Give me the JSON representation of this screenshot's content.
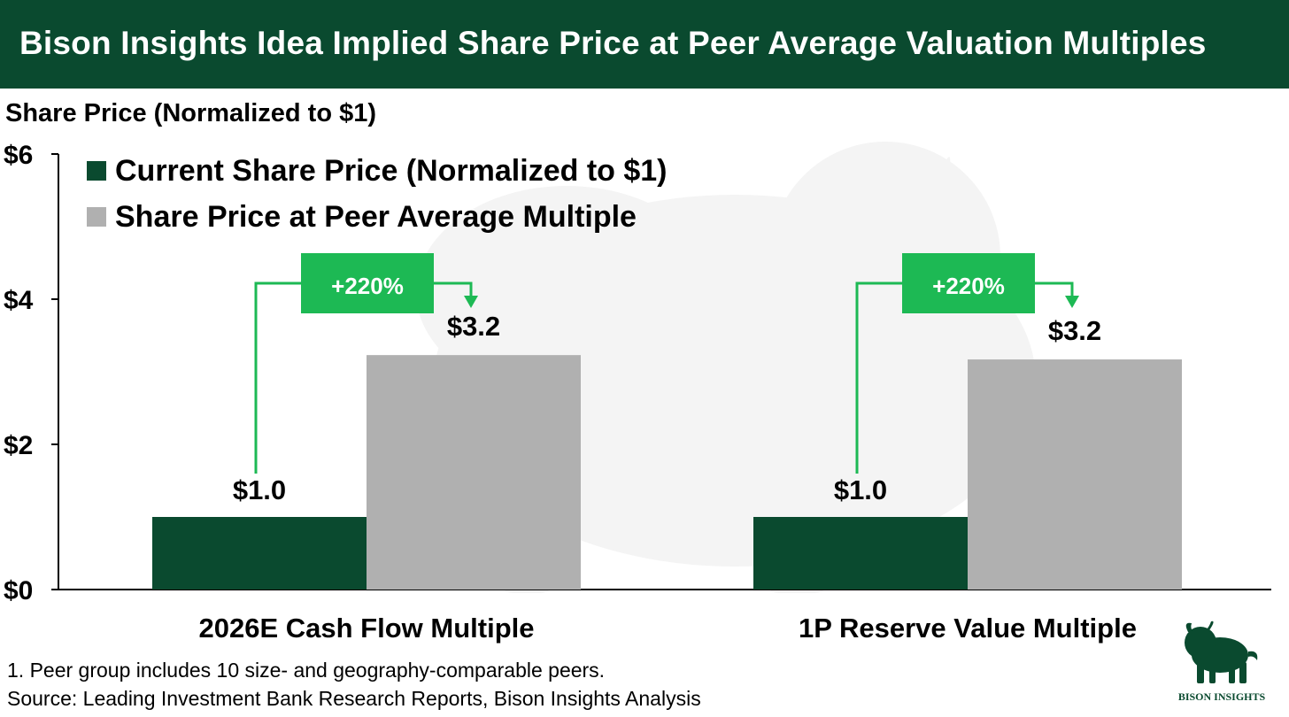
{
  "title": "Bison Insights Idea Implied Share Price at Peer Average Valuation Multiples",
  "colors": {
    "banner": "#0a4a2f",
    "current": "#0a4a2f",
    "peer": "#b0b0b0",
    "callout": "#1db954"
  },
  "chart_data": {
    "type": "bar",
    "ylabel": "Share Price (Normalized to $1)",
    "ylim": [
      0,
      6
    ],
    "yticks": [
      0,
      2,
      4,
      6
    ],
    "ytick_labels": [
      "$0",
      "$2",
      "$4",
      "$6"
    ],
    "grid": false,
    "legend_position": "top-left",
    "categories": [
      "2026E Cash Flow Multiple",
      "1P Reserve Value Multiple"
    ],
    "series": [
      {
        "name": "Current Share Price (Normalized to $1)",
        "color": "#0a4a2f",
        "values": [
          1.0,
          1.0
        ],
        "labels": [
          "$1.0",
          "$1.0"
        ]
      },
      {
        "name": "Share Price at Peer Average Multiple",
        "color": "#b0b0b0",
        "values": [
          3.23,
          3.17
        ],
        "labels": [
          "$3.2",
          "$3.2"
        ]
      }
    ],
    "annotations": [
      "+220%",
      "+220%"
    ]
  },
  "footnotes": [
    "1. Peer group includes 10 size- and geography-comparable peers.",
    "Source: Leading Investment Bank Research Reports, Bison Insights Analysis"
  ],
  "logo": {
    "text": "BISON INSIGHTS",
    "icon": "bison-logo-icon"
  }
}
